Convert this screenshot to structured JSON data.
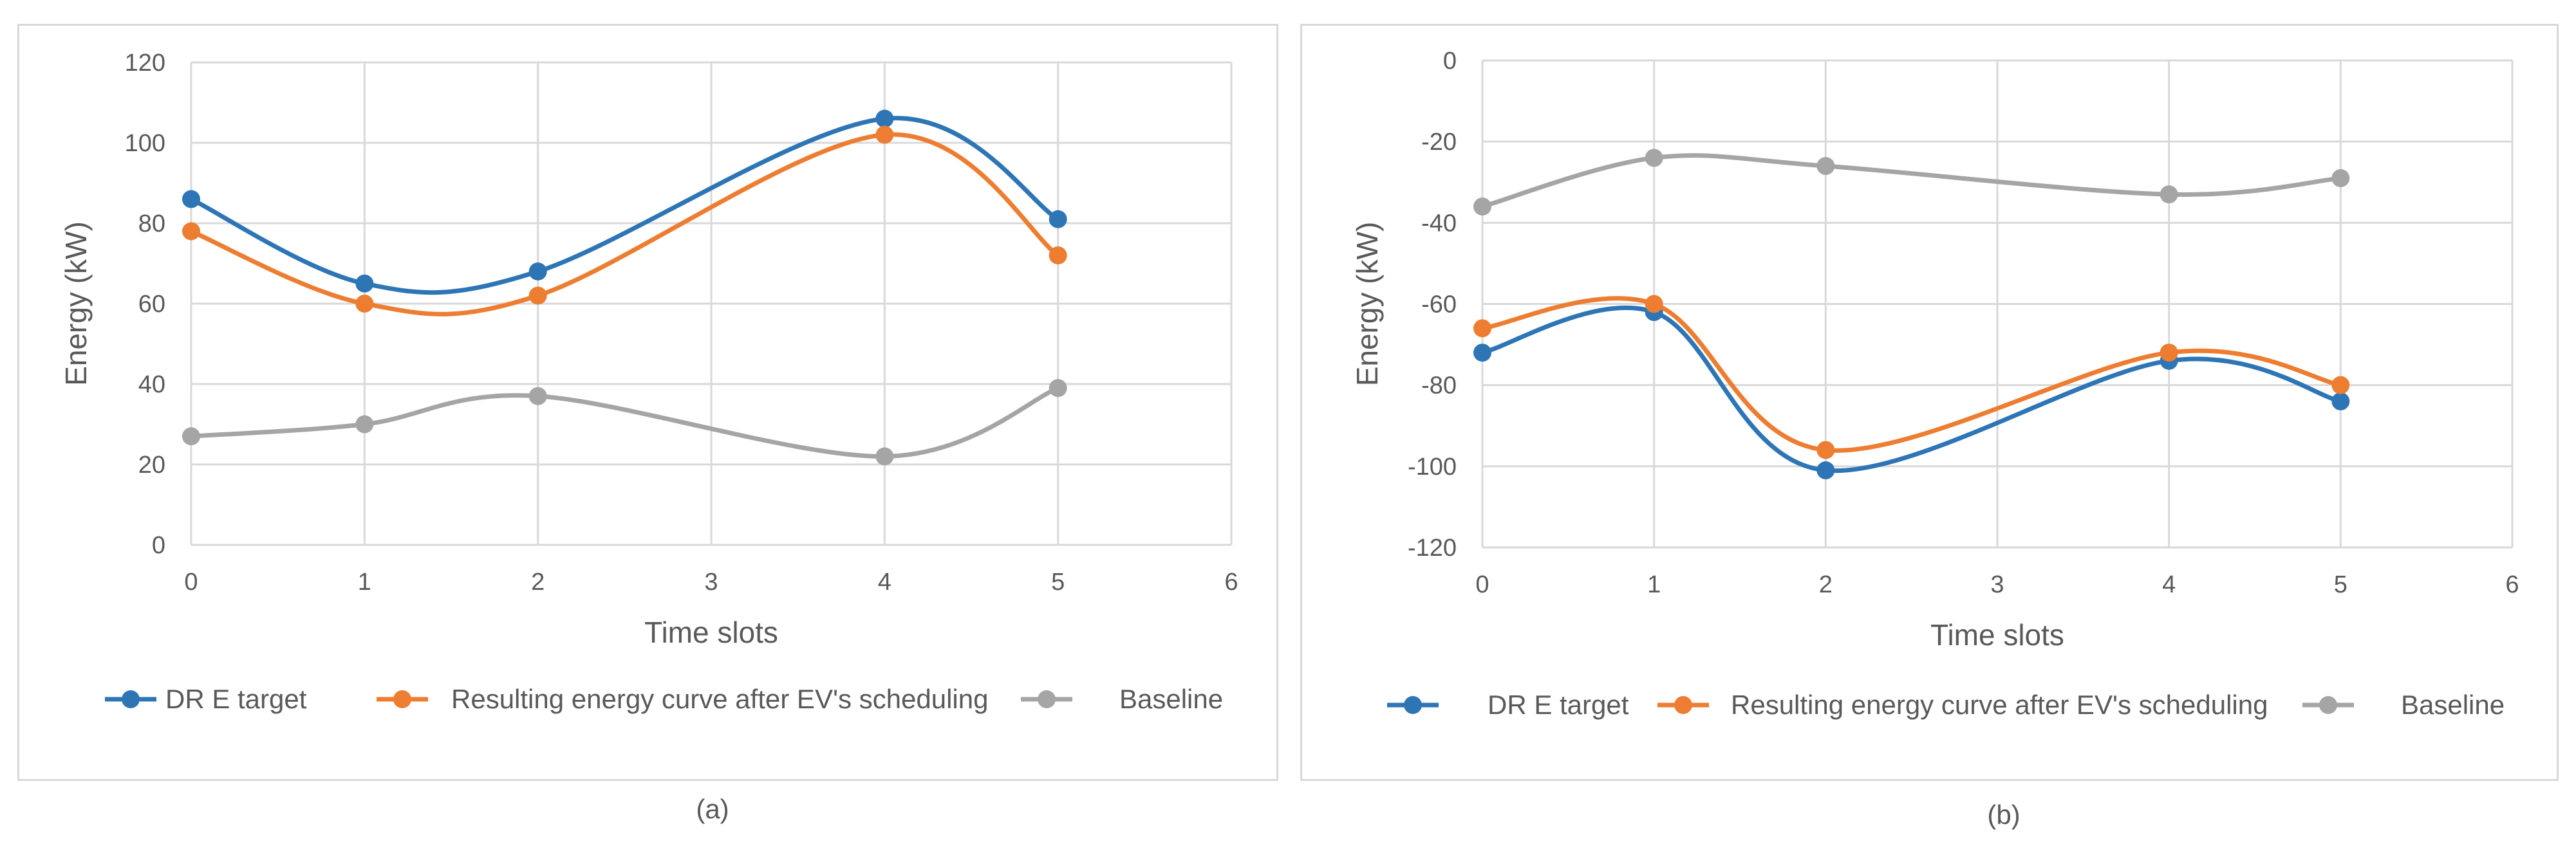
{
  "chart_data": [
    {
      "type": "line",
      "smooth": true,
      "caption": "(a)",
      "xlabel": "Time slots",
      "ylabel": "Energy (kW)",
      "xlim": [
        0,
        6
      ],
      "ylim": [
        0,
        120
      ],
      "xticks": [
        "0",
        "1",
        "2",
        "3",
        "4",
        "5",
        "6"
      ],
      "yticks": [
        "0",
        "20",
        "40",
        "60",
        "80",
        "100",
        "120"
      ],
      "grid": true,
      "legend_position": "bottom",
      "series": [
        {
          "name": "DR E target",
          "color": "#2e75b6",
          "x": [
            0,
            1,
            2,
            4,
            5
          ],
          "values": [
            86,
            65,
            68,
            106,
            81
          ]
        },
        {
          "name": "Resulting energy curve after EV's scheduling",
          "color": "#ed7d31",
          "x": [
            0,
            1,
            2,
            4,
            5
          ],
          "values": [
            78,
            60,
            62,
            102,
            72
          ]
        },
        {
          "name": "Baseline",
          "color": "#a5a5a5",
          "x": [
            0,
            1,
            2,
            4,
            5
          ],
          "values": [
            27,
            30,
            37,
            22,
            39
          ]
        }
      ]
    },
    {
      "type": "line",
      "smooth": true,
      "caption": "(b)",
      "xlabel": "Time slots",
      "ylabel": "Energy (kW)",
      "xlim": [
        0,
        6
      ],
      "ylim": [
        -120,
        0
      ],
      "xticks": [
        "0",
        "1",
        "2",
        "3",
        "4",
        "5",
        "6"
      ],
      "yticks": [
        "-120",
        "-100",
        "-80",
        "-60",
        "-40",
        "-20",
        "0"
      ],
      "grid": true,
      "legend_position": "bottom",
      "series": [
        {
          "name": "DR E target",
          "color": "#2e75b6",
          "x": [
            0,
            1,
            2,
            4,
            5
          ],
          "values": [
            -72,
            -62,
            -101,
            -74,
            -84
          ]
        },
        {
          "name": "Resulting energy curve after EV's scheduling",
          "color": "#ed7d31",
          "x": [
            0,
            1,
            2,
            4,
            5
          ],
          "values": [
            -66,
            -60,
            -96,
            -72,
            -80
          ]
        },
        {
          "name": "Baseline",
          "color": "#a5a5a5",
          "x": [
            0,
            1,
            2,
            4,
            5
          ],
          "values": [
            -36,
            -24,
            -26,
            -33,
            -29
          ]
        }
      ]
    }
  ]
}
